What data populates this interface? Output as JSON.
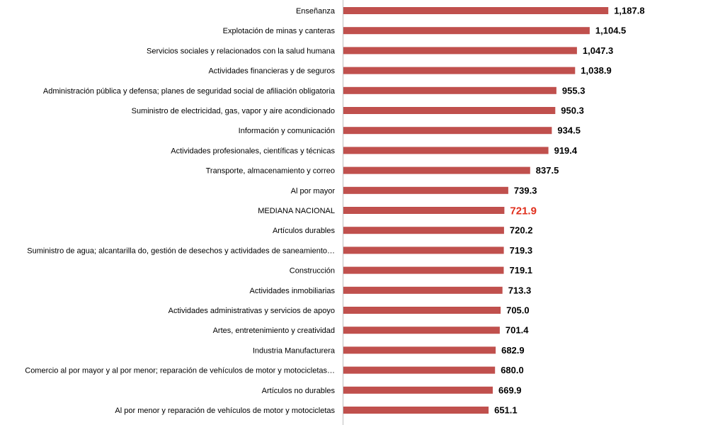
{
  "chart_data": {
    "type": "bar",
    "orientation": "horizontal",
    "title": "",
    "xlabel": "",
    "ylabel": "",
    "xlim": [
      0,
      1400
    ],
    "grid": false,
    "legend": "none",
    "categories": [
      "Enseñanza",
      "Explotación de minas y canteras",
      "Servicios sociales y relacionados con la salud humana",
      "Actividades financieras y de seguros",
      "Administración pública y defensa; planes de seguridad social de afiliación obligatoria",
      "Suministro de electricidad, gas, vapor y aire acondicionado",
      "Información y comunicación",
      "Actividades profesionales, científicas y técnicas",
      "Transporte, almacenamiento y correo",
      "Al por mayor",
      "MEDIANA NACIONAL",
      "Artículos durables",
      "Suministro de agua; alcantarilla do, gestión de desechos y actividades de saneamiento…",
      "Construcción",
      "Actividades inmobiliarias",
      "Actividades administrativas y servicios de apoyo",
      "Artes, entretenimiento y creatividad",
      "Industria Manufacturera",
      "Comercio al por mayor y al por menor; reparación de vehículos de motor y motocicletas…",
      "Artículos no durables",
      "Al por menor y reparación de vehículos de motor y motocicletas"
    ],
    "values": [
      1187.8,
      1104.5,
      1047.3,
      1038.9,
      955.3,
      950.3,
      934.5,
      919.4,
      837.5,
      739.3,
      721.9,
      720.2,
      719.3,
      719.1,
      713.3,
      705.0,
      701.4,
      682.9,
      680.0,
      669.9,
      651.1
    ],
    "data_labels": [
      "1,187.8",
      "1,104.5",
      "1,047.3",
      "1,038.9",
      "955.3",
      "950.3",
      "934.5",
      "919.4",
      "837.5",
      "739.3",
      "721.9",
      "720.2",
      "719.3",
      "719.1",
      "713.3",
      "705.0",
      "701.4",
      "682.9",
      "680.0",
      "669.9",
      "651.1"
    ],
    "highlight_index": 10,
    "colors": {
      "bar": "#c0504d",
      "data_label": "#000000",
      "highlight_label": "#e0301e",
      "category_label": "#000000",
      "axis": "#bfbfbf"
    }
  }
}
